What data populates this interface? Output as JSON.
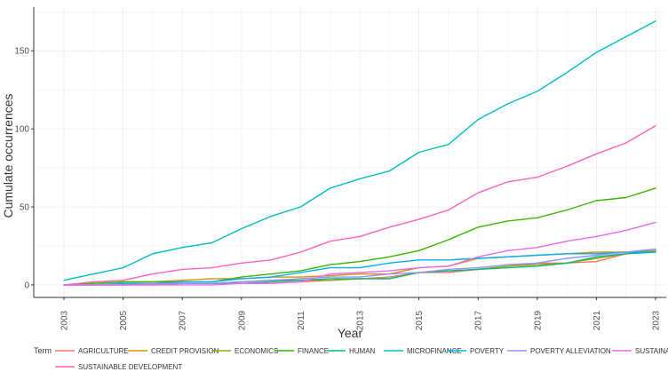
{
  "chart_data": {
    "type": "line",
    "title": "",
    "xlabel": "Year",
    "ylabel": "Cumulate occurrences",
    "xlim": [
      2003,
      2023
    ],
    "ylim": [
      -8,
      178
    ],
    "x_ticks": [
      "2003",
      "2005",
      "2007",
      "2009",
      "2011",
      "2013",
      "2015",
      "2017",
      "2019",
      "2021",
      "2023"
    ],
    "y_ticks": [
      "0",
      "50",
      "100",
      "150"
    ],
    "y_tick_values": [
      0,
      50,
      100,
      150
    ],
    "grid": true,
    "legend_title": "Term",
    "legend_position": "bottom",
    "x": [
      2003,
      2004,
      2005,
      2006,
      2007,
      2008,
      2009,
      2010,
      2011,
      2012,
      2013,
      2014,
      2015,
      2016,
      2017,
      2018,
      2019,
      2020,
      2021,
      2022,
      2023
    ],
    "series": [
      {
        "name": "AGRICULTURE",
        "color": "#f8766d",
        "values": [
          0,
          0,
          0,
          0,
          1,
          1,
          1,
          1,
          2,
          3,
          4,
          5,
          8,
          8,
          10,
          12,
          14,
          14,
          15,
          20,
          22
        ]
      },
      {
        "name": "CREDIT PROVISION",
        "color": "#d89000",
        "values": [
          0,
          1,
          2,
          2,
          3,
          4,
          4,
          5,
          5,
          6,
          7,
          7,
          11,
          12,
          17,
          18,
          19,
          20,
          21,
          21,
          22
        ]
      },
      {
        "name": "ECONOMICS",
        "color": "#a3a500",
        "values": [
          0,
          0,
          0,
          0,
          1,
          1,
          2,
          3,
          3,
          3,
          4,
          4,
          8,
          9,
          10,
          12,
          13,
          14,
          17,
          20,
          22
        ]
      },
      {
        "name": "FINANCE",
        "color": "#39b600",
        "values": [
          0,
          1,
          2,
          2,
          2,
          2,
          5,
          7,
          9,
          13,
          15,
          18,
          22,
          29,
          37,
          41,
          43,
          48,
          54,
          56,
          62
        ]
      },
      {
        "name": "HUMAN",
        "color": "#00bf7d",
        "values": [
          0,
          0,
          1,
          1,
          1,
          1,
          1,
          2,
          3,
          4,
          4,
          4,
          8,
          9,
          10,
          11,
          12,
          14,
          18,
          20,
          21
        ]
      },
      {
        "name": "MICROFINANCE",
        "color": "#00bfc4",
        "values": [
          3,
          7,
          11,
          20,
          24,
          27,
          36,
          44,
          50,
          62,
          68,
          73,
          85,
          90,
          106,
          116,
          124,
          136,
          149,
          159,
          169
        ]
      },
      {
        "name": "POVERTY",
        "color": "#00b0f6",
        "values": [
          0,
          0,
          1,
          1,
          2,
          2,
          4,
          5,
          8,
          11,
          11,
          14,
          16,
          16,
          17,
          18,
          19,
          20,
          20,
          21,
          21
        ]
      },
      {
        "name": "POVERTY ALLEVIATION",
        "color": "#9590ff",
        "values": [
          0,
          0,
          0,
          1,
          1,
          1,
          2,
          3,
          4,
          5,
          5,
          7,
          8,
          10,
          11,
          13,
          14,
          17,
          19,
          21,
          23
        ]
      },
      {
        "name": "SUSTAINABILITY",
        "color": "#e76bf3",
        "values": [
          0,
          0,
          0,
          0,
          0,
          0,
          1,
          1,
          2,
          7,
          8,
          9,
          11,
          12,
          18,
          22,
          24,
          28,
          31,
          35,
          40
        ]
      },
      {
        "name": "SUSTAINABLE DEVELOPMENT",
        "color": "#ff62bc",
        "values": [
          0,
          2,
          3,
          7,
          10,
          11,
          14,
          16,
          21,
          28,
          31,
          37,
          42,
          48,
          59,
          66,
          69,
          76,
          84,
          91,
          102
        ]
      }
    ]
  }
}
